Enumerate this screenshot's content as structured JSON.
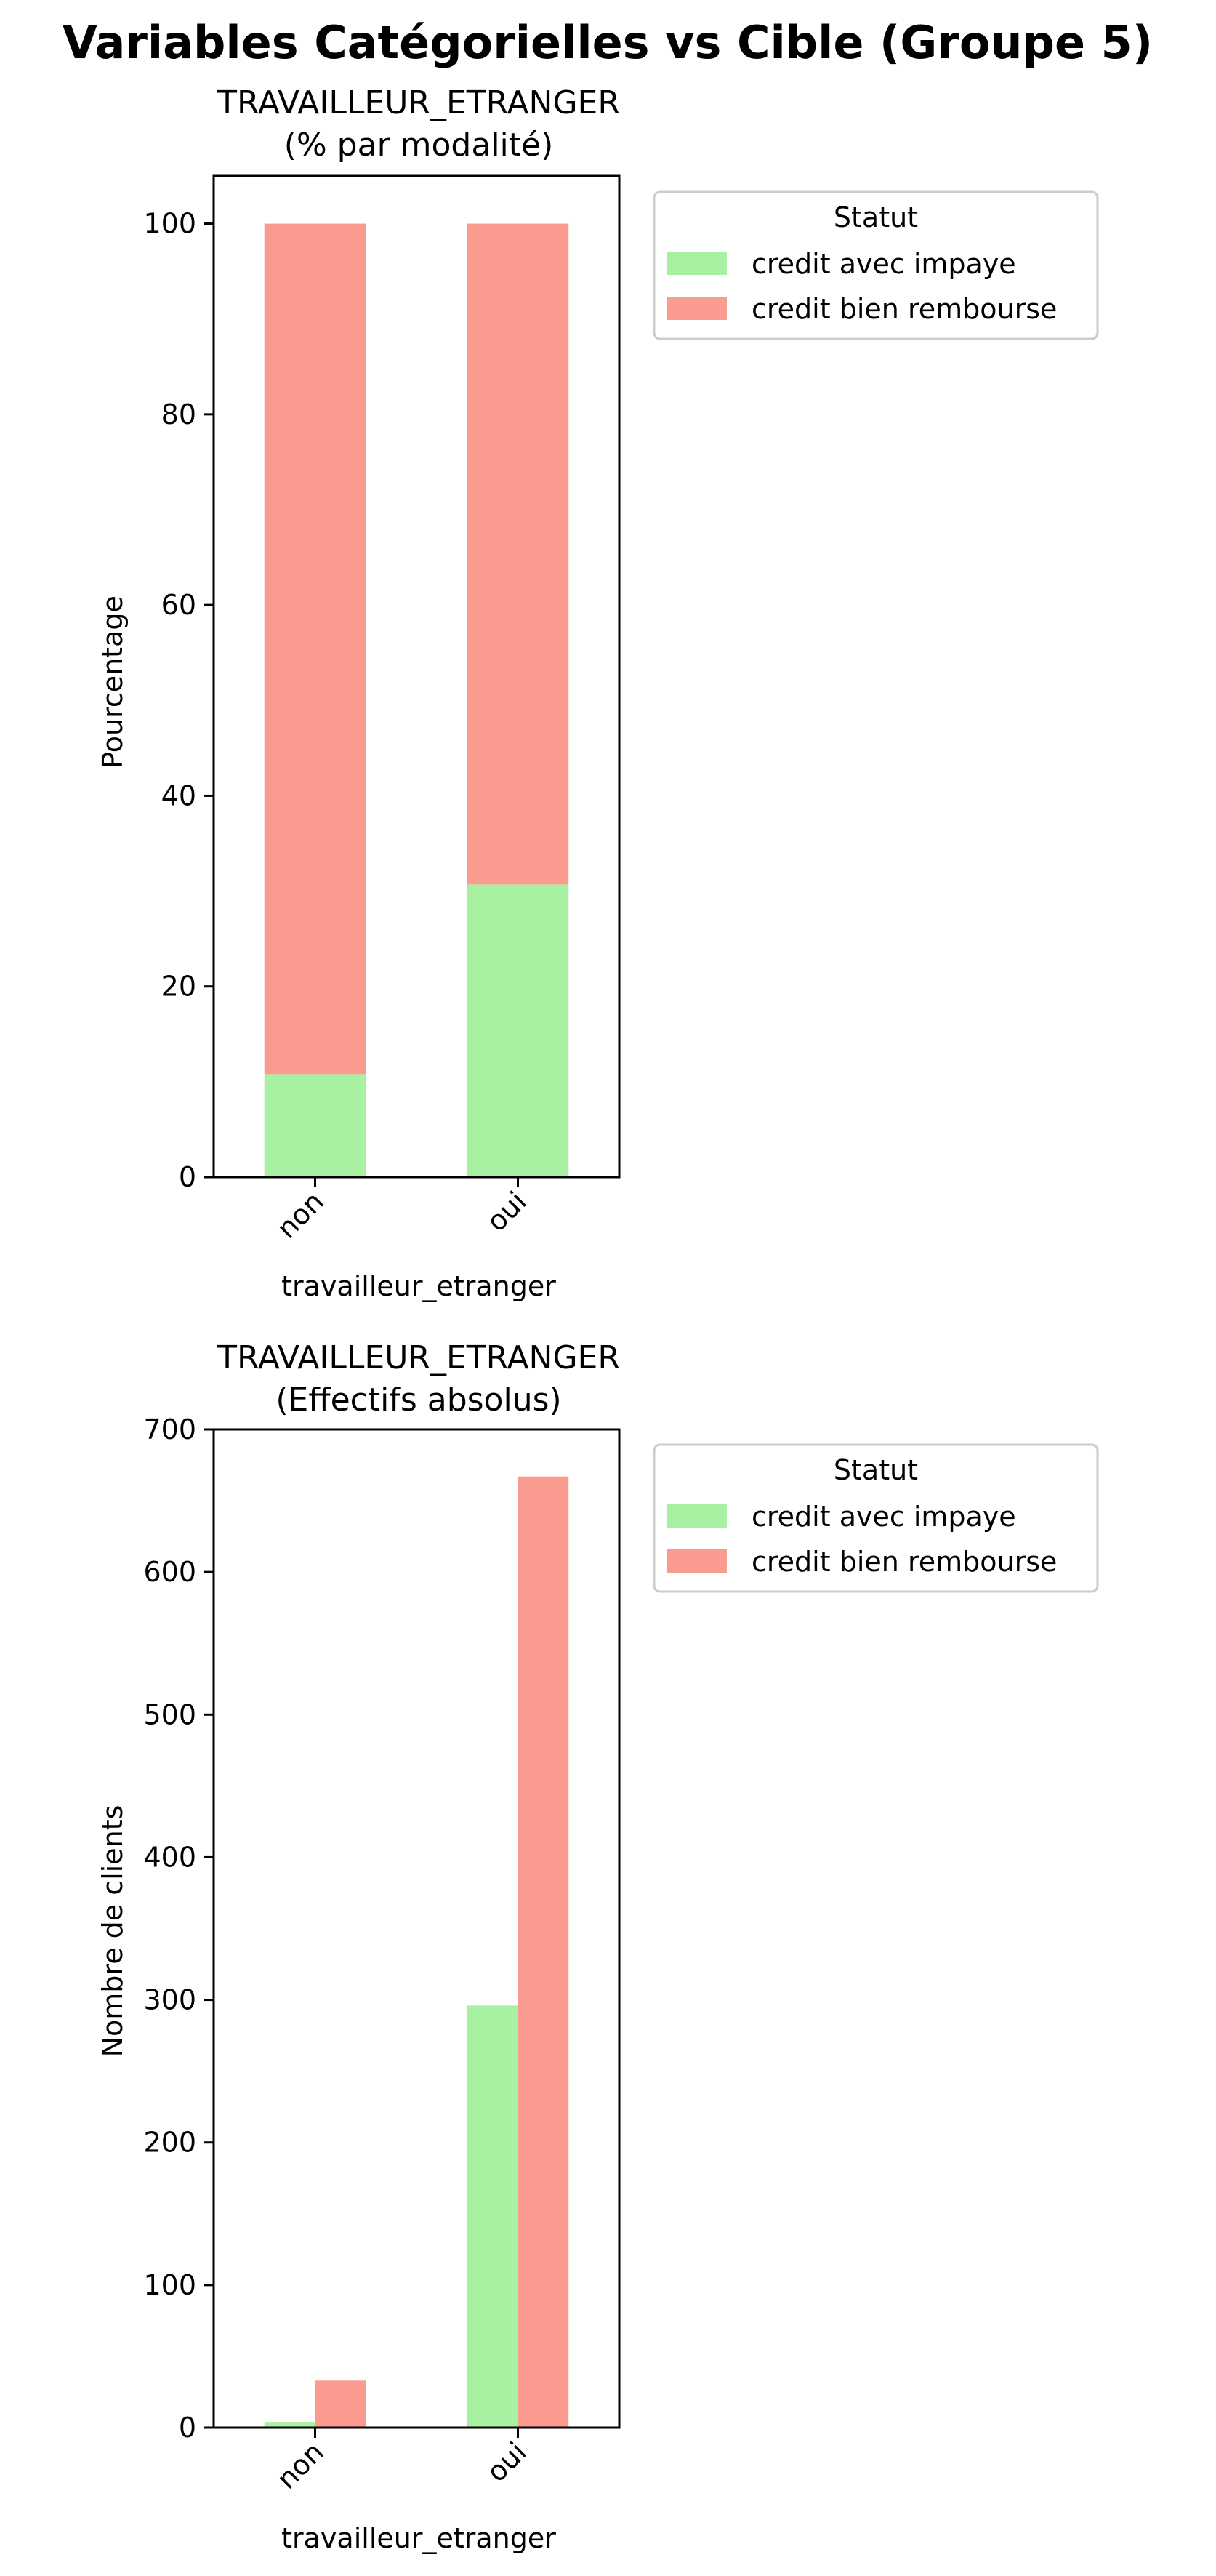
{
  "suptitle": "Variables Catégorielles vs Cible (Groupe 5)",
  "legend_title": "Statut",
  "colors": {
    "credit_avec_impaye": "#a8f0a2",
    "credit_bien_rembourse": "#fa9b8f"
  },
  "chart_data": [
    {
      "type": "bar",
      "stacked": true,
      "title_line1": "TRAVAILLEUR_ETRANGER",
      "title_line2": "(% par modalité)",
      "xlabel": "travailleur_etranger",
      "ylabel": "Pourcentage",
      "categories": [
        "non",
        "oui"
      ],
      "series": [
        {
          "name": "credit avec impaye",
          "values": [
            10.8,
            30.7
          ]
        },
        {
          "name": "credit bien rembourse",
          "values": [
            89.2,
            69.3
          ]
        }
      ],
      "ylim": [
        0,
        105
      ],
      "yticks": [
        0,
        20,
        40,
        60,
        80,
        100
      ],
      "legend": "upper-right-outside",
      "grid": false
    },
    {
      "type": "bar",
      "stacked": false,
      "title_line1": "TRAVAILLEUR_ETRANGER",
      "title_line2": "(Effectifs absolus)",
      "xlabel": "travailleur_etranger",
      "ylabel": "Nombre de clients",
      "categories": [
        "non",
        "oui"
      ],
      "series": [
        {
          "name": "credit avec impaye",
          "values": [
            4,
            296
          ]
        },
        {
          "name": "credit bien rembourse",
          "values": [
            33,
            667
          ]
        }
      ],
      "ylim": [
        0,
        700
      ],
      "yticks": [
        0,
        100,
        200,
        300,
        400,
        500,
        600,
        700
      ],
      "legend": "upper-right-outside",
      "grid": false
    }
  ]
}
